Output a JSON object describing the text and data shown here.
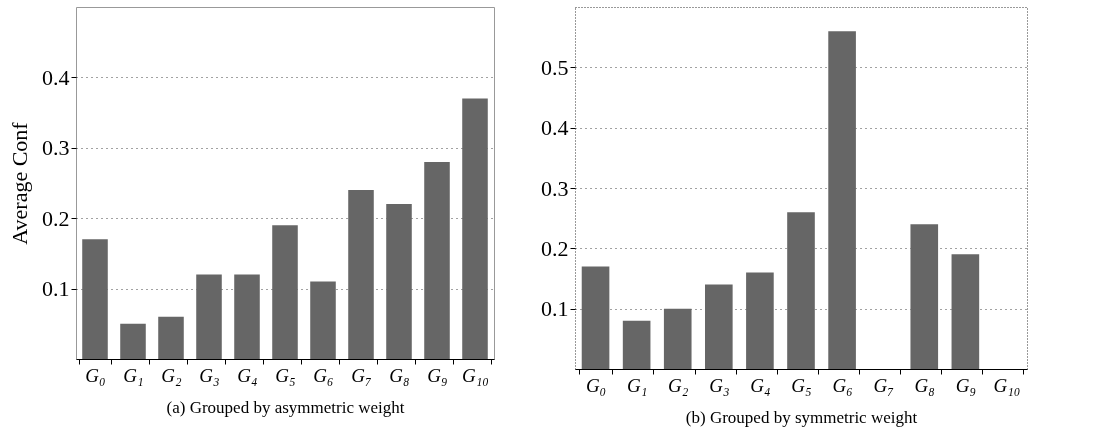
{
  "chart_data": [
    {
      "type": "bar",
      "xlabel": "(a) Grouped by asymmetric weight",
      "ylabel": "Average Conf",
      "categories": [
        "G₀",
        "G₁",
        "G₂",
        "G₃",
        "G₄",
        "G₅",
        "G₆",
        "G₇",
        "G₈",
        "G₉",
        "G₁₀"
      ],
      "values": [
        0.17,
        0.05,
        0.06,
        0.12,
        0.12,
        0.19,
        0.11,
        0.24,
        0.22,
        0.28,
        0.37
      ],
      "color": "#666666",
      "ylim": [
        0,
        0.5
      ],
      "yticks": [
        0.1,
        0.2,
        0.3,
        0.4
      ],
      "grid": "y"
    },
    {
      "type": "bar",
      "xlabel": "(b) Grouped by symmetric weight",
      "categories": [
        "G₀",
        "G₁",
        "G₂",
        "G₃",
        "G₄",
        "G₅",
        "G₆",
        "G₇",
        "G₈",
        "G₉",
        "G₁₀"
      ],
      "values": [
        0.17,
        0.08,
        0.1,
        0.14,
        0.16,
        0.26,
        0.56,
        null,
        0.24,
        0.19,
        null
      ],
      "color": "#666666",
      "ylim": [
        0,
        0.6
      ],
      "yticks": [
        0.1,
        0.2,
        0.3,
        0.4,
        0.5
      ],
      "grid": "y"
    }
  ]
}
